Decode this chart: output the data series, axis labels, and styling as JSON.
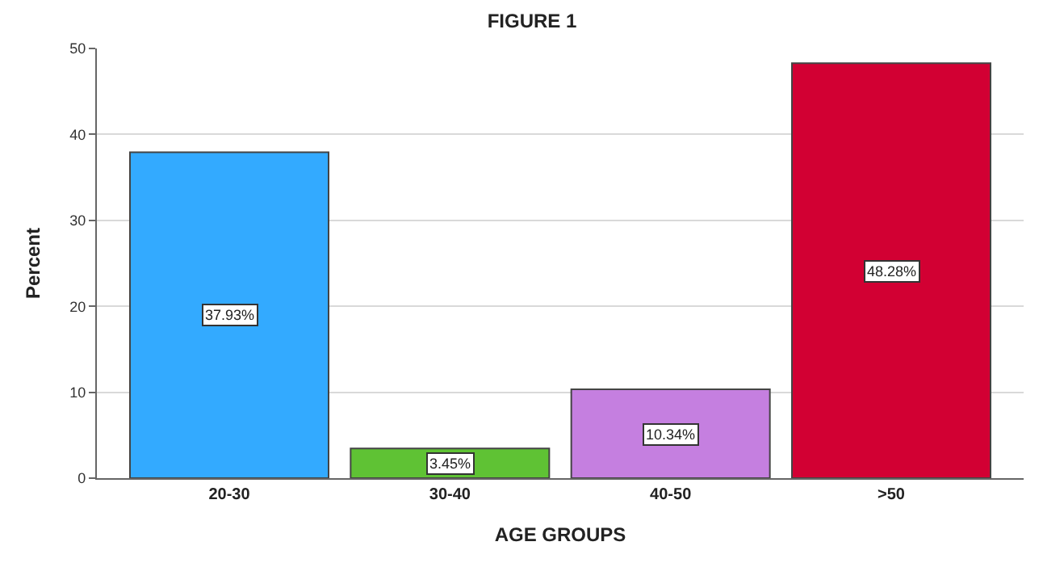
{
  "chart_data": {
    "type": "bar",
    "title": "FIGURE 1",
    "xlabel": "AGE GROUPS",
    "ylabel": "Percent",
    "categories": [
      "20-30",
      "30-40",
      "40-50",
      ">50"
    ],
    "values": [
      37.93,
      3.45,
      10.34,
      48.28
    ],
    "value_labels": [
      "37.93%",
      "3.45%",
      "10.34%",
      "48.28%"
    ],
    "colors": [
      "#33aaff",
      "#5fc234",
      "#c57fe0",
      "#d20033"
    ],
    "ylim": [
      0,
      50
    ],
    "yticks": [
      0,
      10,
      20,
      30,
      40,
      50
    ],
    "grid": "y",
    "legend": false
  }
}
